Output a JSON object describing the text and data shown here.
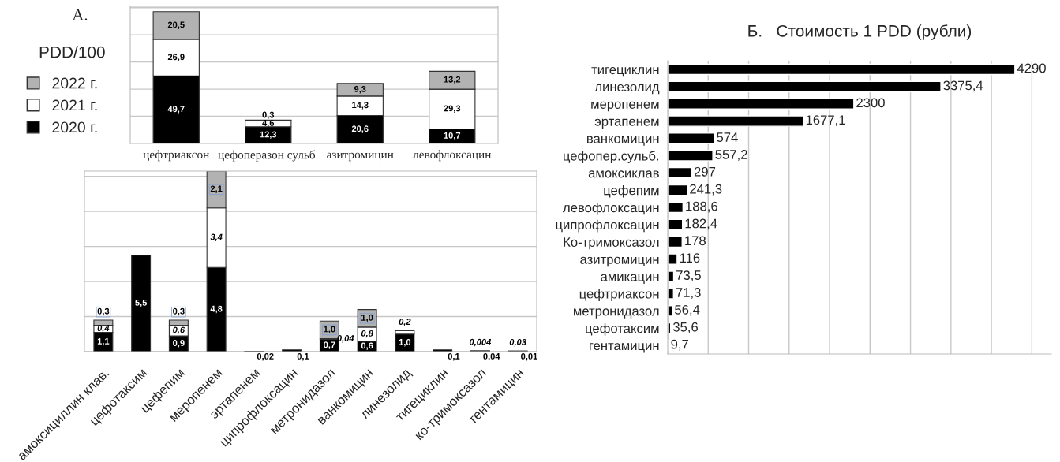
{
  "chart_data": [
    {
      "type": "bar",
      "title": "A.",
      "ylabel": "PDD/100",
      "stacked": true,
      "legend": "left",
      "grid": "y",
      "tick_labels": "x",
      "categories": [
        "цефтриаксон",
        "цефоперазон сульб.",
        "азитромицин",
        "левофлоксацин"
      ],
      "series": [
        {
          "name": "2020 г.",
          "color": "#000000",
          "values": [
            49.7,
            12.3,
            20.6,
            10.7
          ],
          "value_labels": [
            "49,7",
            "12,3",
            "20,6",
            "10,7"
          ]
        },
        {
          "name": "2021 г.",
          "color": "#ffffff",
          "values": [
            26.9,
            4.6,
            14.3,
            29.3
          ],
          "value_labels": [
            "26,9",
            "4,6",
            "14,3",
            "29,3"
          ]
        },
        {
          "name": "2022 г.",
          "color": "#b2b2b2",
          "values": [
            20.5,
            0.3,
            9.3,
            13.2
          ],
          "value_labels": [
            "20,5",
            "0,3",
            "9,3",
            "13,2"
          ]
        }
      ]
    },
    {
      "type": "bar",
      "stacked": true,
      "grid": "y",
      "tick_labels": "x",
      "categories": [
        "амоксициллин клав.",
        "цефотаксим",
        "цефепим",
        "меропенем",
        "эртапенем",
        "ципрофлоксацин",
        "метронидазол",
        "ванкомицин",
        "линезолид",
        "тигециклин",
        "ко-тримоксазол",
        "гентамицин"
      ],
      "series": [
        {
          "color": "#000000",
          "values": [
            1.1,
            5.5,
            0.9,
            4.8,
            0.02,
            0.1,
            0.7,
            0.6,
            1.0,
            0.1,
            0.04,
            0.01
          ],
          "value_labels": [
            "1,1",
            "5,5",
            "0,9",
            "4,8",
            "0,02",
            "0,1",
            "0,7",
            "0,6",
            "1,0",
            "0,1",
            "0,04",
            "0,01"
          ]
        },
        {
          "color": "#ffffff",
          "values": [
            0.4,
            null,
            0.6,
            3.4,
            null,
            null,
            0.04,
            0.8,
            0.2,
            null,
            0.004,
            0.03
          ],
          "value_labels": [
            "0,4",
            null,
            "0,6",
            "3,4",
            null,
            null,
            "0,04",
            "0,8",
            "0,2",
            null,
            "0,004",
            "0,03"
          ]
        },
        {
          "color": "#b2b2b2",
          "values": [
            0.3,
            null,
            0.3,
            2.1,
            null,
            null,
            1.0,
            1.0,
            null,
            null,
            null,
            null
          ],
          "value_labels": [
            "0,3",
            null,
            "0,3",
            "2,1",
            null,
            null,
            "1,0",
            "1,0",
            null,
            null,
            null,
            null
          ]
        }
      ]
    },
    {
      "type": "bar",
      "title": "Б.   Стоимость 1 PDD (рубли)",
      "orientation": "horizontal",
      "grid": "x",
      "tick_labels": "y",
      "categories": [
        "тигециклин",
        "линезолид",
        "меропенем",
        "эртапенем",
        "ванкомицин",
        "цефопер.сульб.",
        "амоксиклав",
        "цефепим",
        "левофлоксацин",
        "ципрофлоксацин",
        "Ко-тримоксазол",
        "азитромицин",
        "амикацин",
        "цефтриаксон",
        "метронидазол",
        "цефотаксим",
        "гентамицин"
      ],
      "color": "#000000",
      "values": [
        4290,
        3375.4,
        2300,
        1677.1,
        574,
        557.2,
        297,
        241.3,
        188.6,
        182.4,
        178,
        116,
        73.5,
        71.3,
        56.4,
        35.6,
        9.7
      ],
      "value_labels": [
        "4290",
        "3375,4",
        "2300",
        "1677,1",
        "574",
        "557,2",
        "297",
        "241,3",
        "188,6",
        "182,4",
        "178",
        "116",
        "73,5",
        "71,3",
        "56,4",
        "35,6",
        "9,7"
      ]
    }
  ]
}
